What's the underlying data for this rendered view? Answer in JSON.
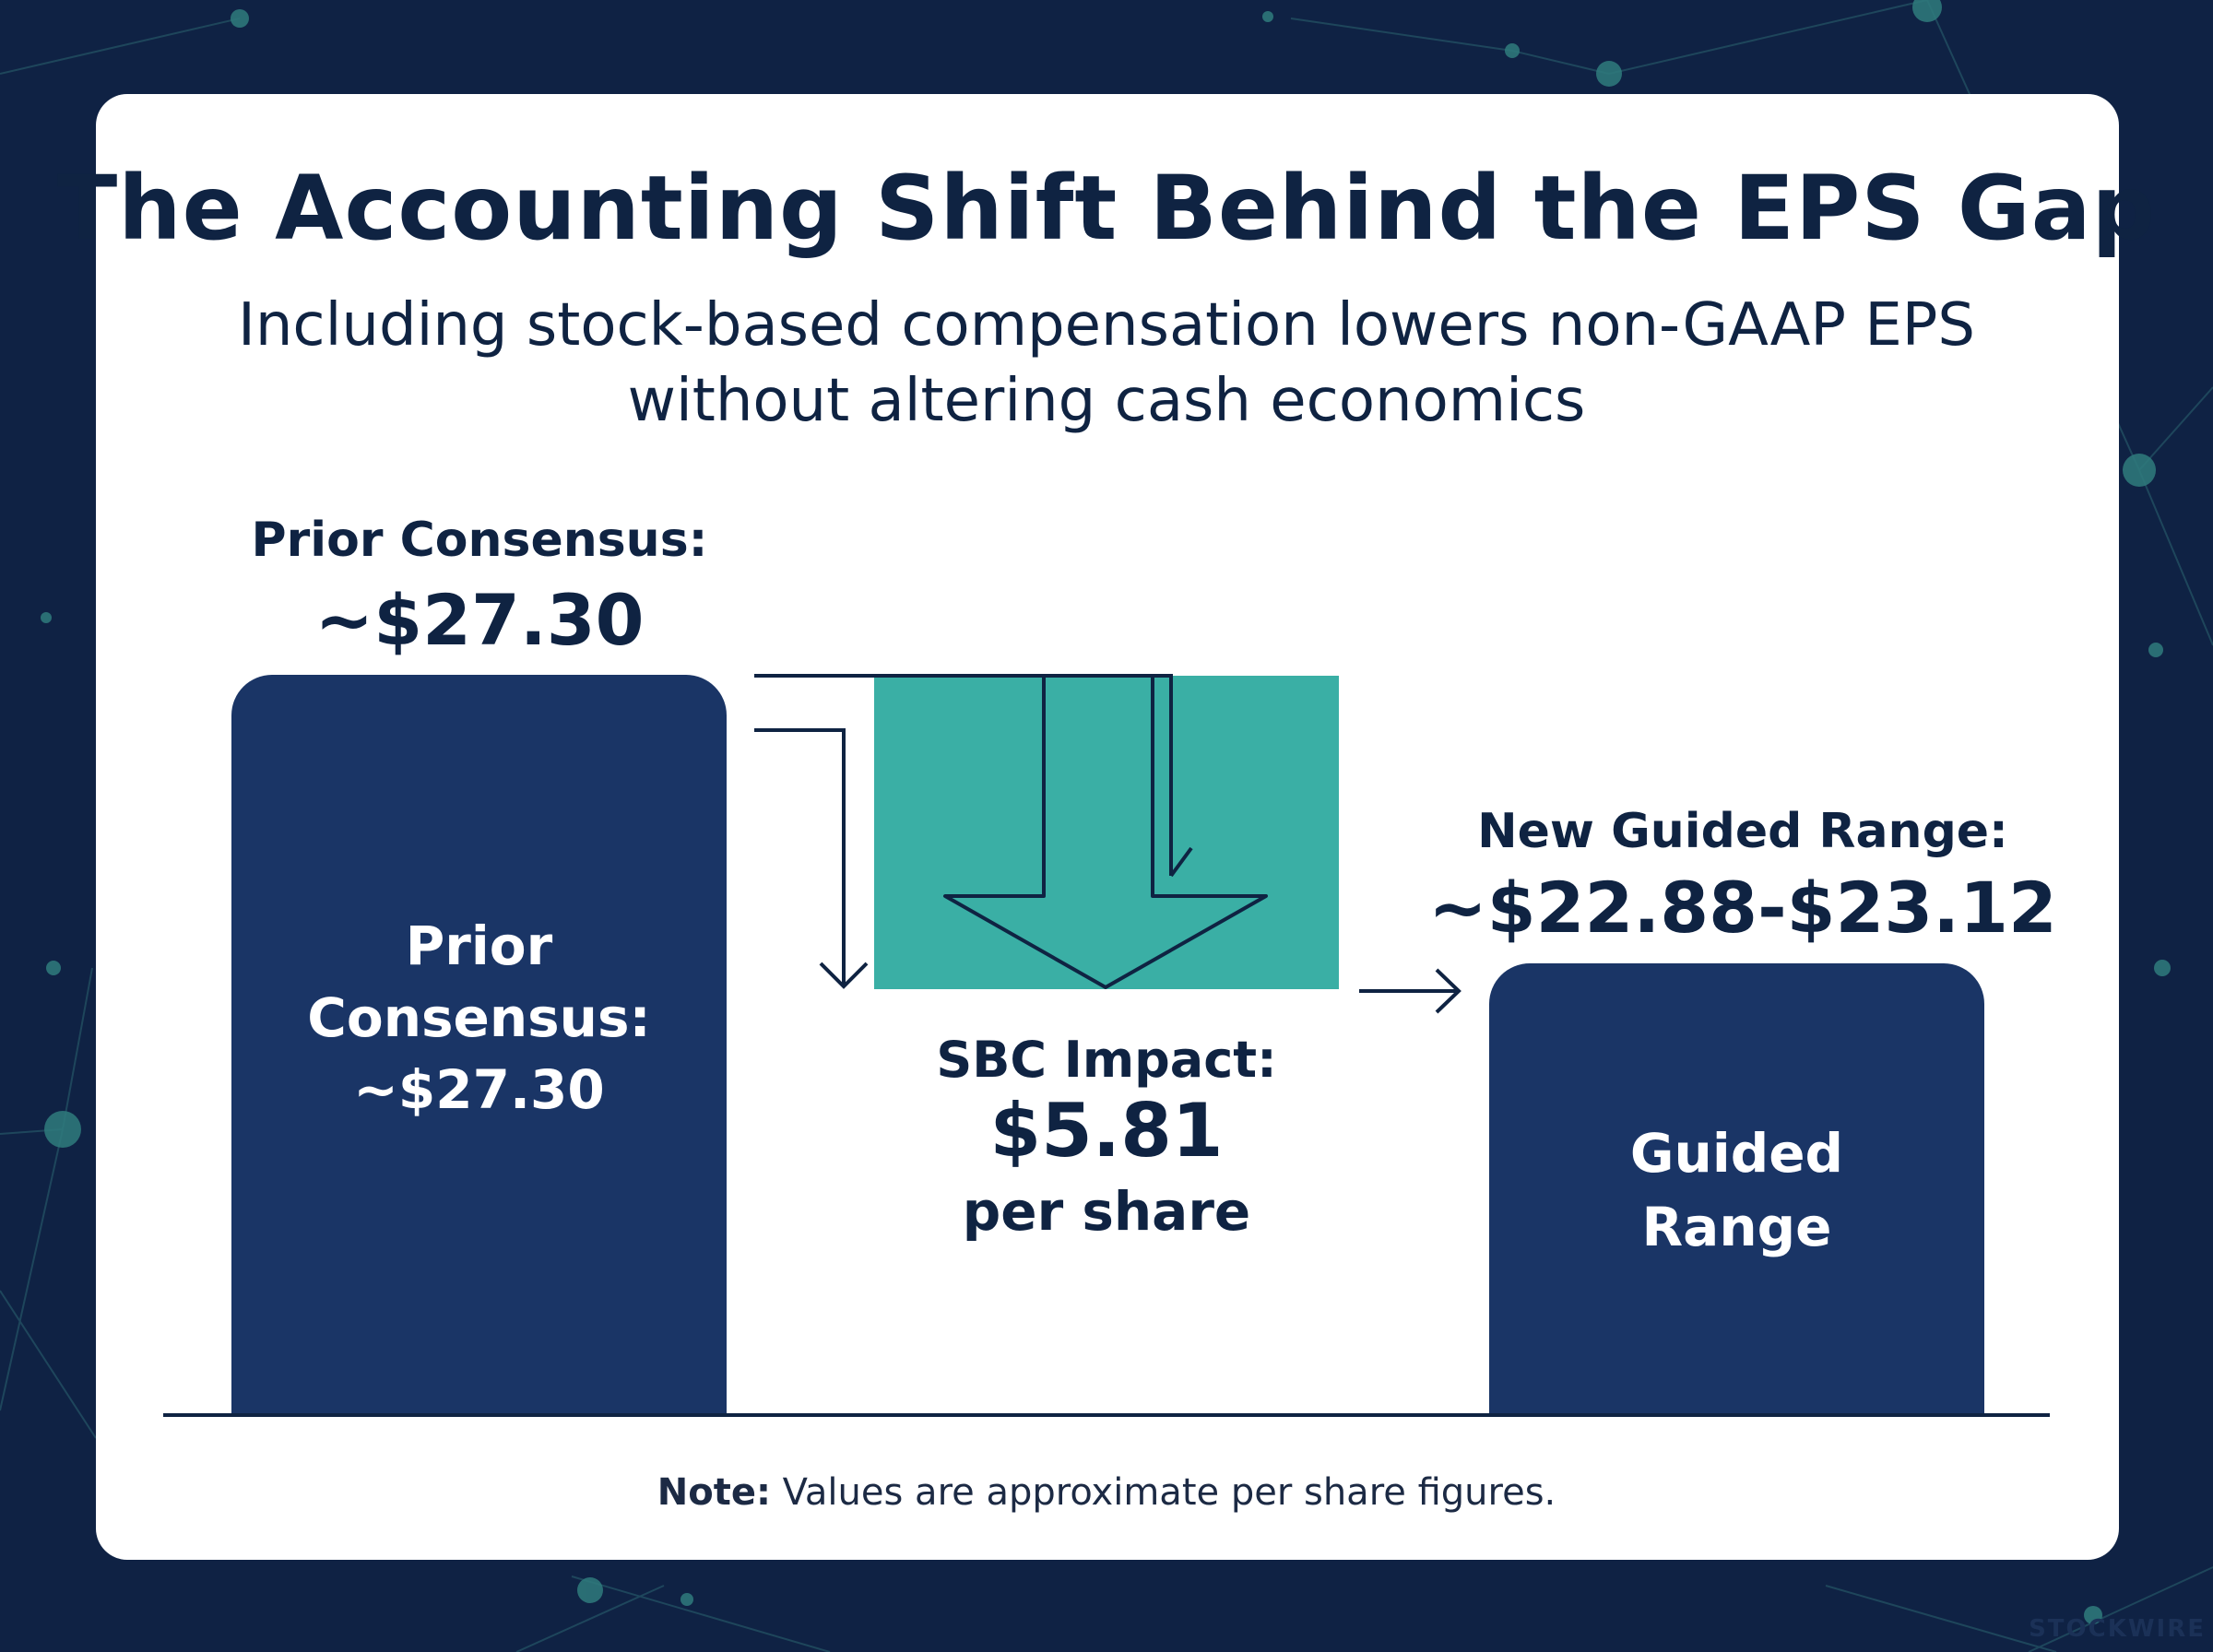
{
  "title": "The Accounting Shift Behind the EPS Gap",
  "subtitle": "Including stock-based compensation lowers non-GAAP EPS without altering cash economics",
  "colors": {
    "background": "#0f2244",
    "bar": "#1a3566",
    "impact": "#3aafa5",
    "text": "#0f2342"
  },
  "chart_data": {
    "type": "bar",
    "categories": [
      "Prior Consensus",
      "SBC Impact",
      "Guided Range"
    ],
    "values": [
      27.3,
      -5.81,
      23.0
    ],
    "units": "USD per share",
    "bars": [
      {
        "key": "prior",
        "label_head": "Prior Consensus:",
        "label_value": "~$27.30",
        "inner_lines": [
          "Prior",
          "Consensus:",
          "~$27.30"
        ],
        "value": 27.3
      },
      {
        "key": "impact",
        "label_head": "SBC Impact:",
        "label_value": "$5.81",
        "label_unit": "per share",
        "value": -5.81
      },
      {
        "key": "guided",
        "label_head": "New Guided Range:",
        "label_value": "~$22.88-$23.12",
        "inner_lines": [
          "Guided",
          "Range"
        ],
        "value_low": 22.88,
        "value_high": 23.12
      }
    ],
    "note_bold": "Note:",
    "note_text": " Values are approximate per share figures."
  },
  "watermark": "STOCKWIRE"
}
